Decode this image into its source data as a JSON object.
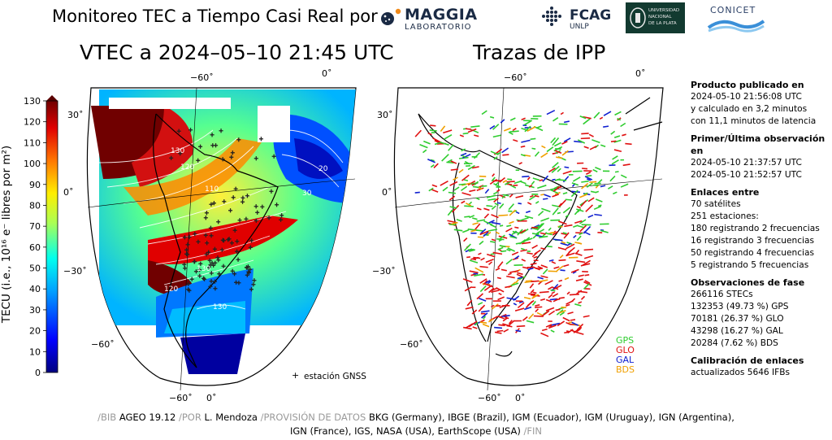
{
  "header": {
    "title": "Monitoreo TEC a Tiempo Casi Real por",
    "logos": {
      "maggia": {
        "line1": "MAGGIA",
        "line2": "LABORATORIO"
      },
      "fcag": {
        "line1": "FCAG",
        "line2": "UNLP"
      },
      "unlp": {
        "line1": "UNIVERSIDAD",
        "line2": "NACIONAL",
        "line3": "DE LA PLATA"
      },
      "conicet": {
        "label": "CONICET"
      }
    }
  },
  "map_left": {
    "title": "VTEC a 2024–05–10 21:45 UTC",
    "lon_labels": [
      "−60˚",
      "0˚"
    ],
    "lon_labels_bottom": [
      "−60˚",
      "0˚"
    ],
    "lat_labels": [
      "30˚",
      "0˚",
      "−30˚",
      "−60˚"
    ],
    "station_legend": "estación GNSS",
    "contour_labels": [
      "130",
      "120",
      "110",
      "20",
      "30",
      "130",
      "120",
      "130"
    ]
  },
  "colorbar": {
    "label": "TECU (i.e., 10¹⁶ e⁻ libres por m²)",
    "ticks": [
      "130",
      "120",
      "110",
      "100",
      "90",
      "80",
      "70",
      "60",
      "50",
      "40",
      "30",
      "20",
      "10",
      "0"
    ],
    "min": 0,
    "max": 130
  },
  "map_right": {
    "title": "Trazas de IPP",
    "lon_labels": [
      "−60˚",
      "0˚"
    ],
    "lon_labels_bottom": [
      "−60˚",
      "0˚"
    ],
    "lat_labels": [
      "30˚",
      "0˚",
      "−30˚",
      "−60˚"
    ],
    "legend": [
      {
        "name": "GPS",
        "color": "#2ecc2e"
      },
      {
        "name": "GLO",
        "color": "#e01010"
      },
      {
        "name": "GAL",
        "color": "#1020d0"
      },
      {
        "name": "BDS",
        "color": "#f0a000"
      }
    ]
  },
  "info": {
    "producto": {
      "head": "Producto publicado en",
      "lines": [
        "2024-05-10 21:56:08 UTC",
        "y calculado en 3,2 minutos",
        "con 11,1 minutos de latencia"
      ]
    },
    "observacion": {
      "head": "Primer/Última observación en",
      "lines": [
        "2024-05-10 21:37:57 UTC",
        "2024-05-10 21:52:57 UTC"
      ]
    },
    "enlaces": {
      "head": "Enlaces entre",
      "lines": [
        "70 satélites",
        "251 estaciones:",
        "180 registrando 2 frecuencias",
        "16 registrando 3 frecuencias",
        "50 registrando 4 frecuencias",
        "5 registrando 5 frecuencias"
      ]
    },
    "fase": {
      "head": "Observaciones de fase",
      "lines": [
        "266116 STECs",
        "132353 (49.73 %) GPS",
        "70181 (26.37 %) GLO",
        "43298 (16.27 %) GAL",
        "20284 (7.62 %) BDS"
      ]
    },
    "calibracion": {
      "head": "Calibración de enlaces",
      "lines": [
        "actualizados 5646 IFBs"
      ]
    }
  },
  "footer": {
    "bib_tag": "/BIB",
    "bib": "AGEO 19.12",
    "por_tag": "/POR",
    "por": "L. Mendoza",
    "prov_tag": "/PROVISIÓN DE DATOS",
    "prov_line1": "BKG (Germany), IBGE (Brazil), IGM (Ecuador), IGM (Uruguay), IGN (Argentina),",
    "prov_line2": "IGN (France), IGS, NASA (USA), EarthScope (USA)",
    "fin_tag": "/FIN"
  }
}
